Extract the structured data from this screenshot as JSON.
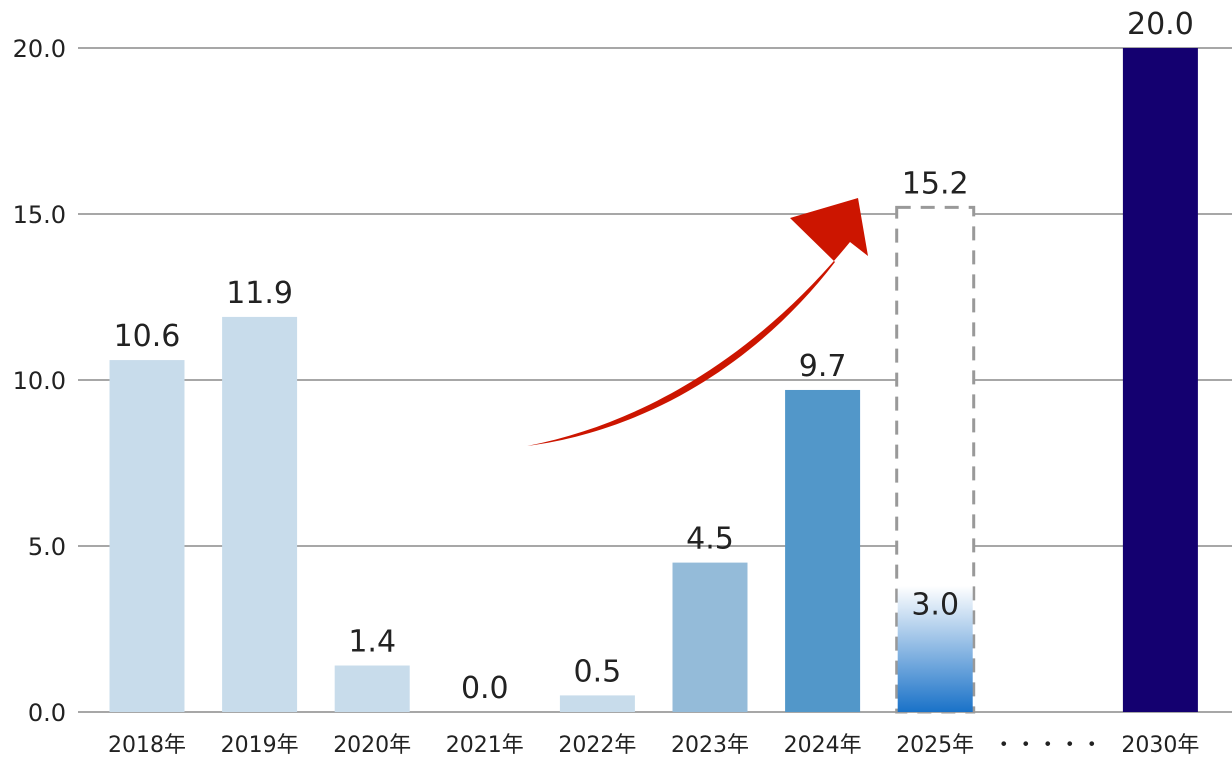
{
  "chart_data": {
    "type": "bar",
    "categories": [
      "2018年",
      "2019年",
      "2020年",
      "2021年",
      "2022年",
      "2023年",
      "2024年",
      "2025年",
      "・・・・・",
      "2030年"
    ],
    "values": [
      10.6,
      11.9,
      1.4,
      0.0,
      0.5,
      4.5,
      9.7,
      3.0,
      null,
      20.0
    ],
    "labels": [
      "10.6",
      "11.9",
      "1.4",
      "0.0",
      "0.5",
      "4.5",
      "9.7",
      "3.0",
      "",
      "20.0"
    ],
    "target_2025": {
      "value": 15.2,
      "label": "15.2",
      "style": "dashed-outline"
    },
    "ylim": [
      0,
      20
    ],
    "yticks": [
      "0.0",
      "5.0",
      "10.0",
      "15.0",
      "20.0"
    ],
    "grid": true,
    "title": "",
    "xlabel": "",
    "ylabel": "",
    "colors": [
      "#c8dceb",
      "#c8dceb",
      "#c8dceb",
      "#c8dceb",
      "#c8dceb",
      "#94bbd9",
      "#5297c9",
      "gradient",
      "",
      "#140070"
    ],
    "gradient_colors": [
      "#ffffff",
      "#1a72c8"
    ],
    "arrow_color": "#cc1500",
    "annotation": "upward-curved-arrow"
  }
}
